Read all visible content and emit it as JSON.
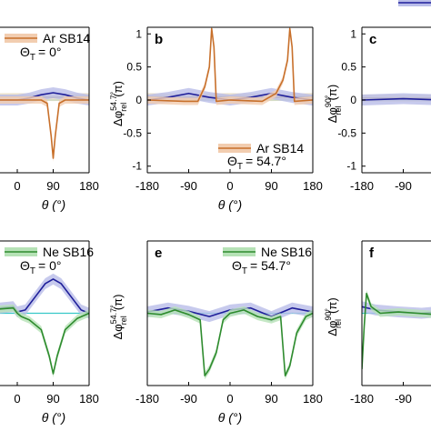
{
  "colors": {
    "ar": "#c8702b",
    "ar_band": "#f2cdb0",
    "ne": "#2e8b2e",
    "ne_band": "#b6e2b6",
    "model": "#1f1f9a",
    "model_band": "#b9bde9",
    "ref": "#36c8c8",
    "tan": "#b8a06a",
    "tan_band": "#e8dcc0",
    "axis": "#000000"
  },
  "chart_data": [
    {
      "id": "a-partial",
      "type": "line",
      "panel_label": "",
      "legend": {
        "label": "Ar SB14",
        "position": "top-right"
      },
      "annotation_sym": "Θ",
      "annotation_sub": "T",
      "annotation_val": "= 0°",
      "xlim": [
        -180,
        180
      ],
      "ylim": [
        -1.1,
        1.1
      ],
      "x_ticks": [
        "0",
        "90",
        "180"
      ],
      "y_ticks": [],
      "xlabel": "θ (°)",
      "ylabel": "",
      "series": [
        {
          "role": "data",
          "x": [
            -180,
            0,
            60,
            75,
            85,
            90,
            95,
            105,
            120,
            180
          ],
          "y": [
            0,
            0,
            0,
            -0.05,
            -0.55,
            -0.88,
            -0.55,
            -0.05,
            0,
            0
          ]
        },
        {
          "role": "model",
          "x": [
            -180,
            0,
            30,
            60,
            90,
            120,
            150,
            180
          ],
          "y": [
            0,
            0,
            0.03,
            0.08,
            0.11,
            0.08,
            0.03,
            0
          ]
        },
        {
          "role": "tan",
          "x": [
            -180,
            0,
            90,
            180
          ],
          "y": [
            0.04,
            0.05,
            0.04,
            0.05
          ]
        },
        {
          "role": "ref",
          "x": [
            -180,
            180
          ],
          "y": [
            0,
            0
          ]
        }
      ]
    },
    {
      "id": "b",
      "type": "line",
      "panel_label": "b",
      "legend": {
        "label": "Ar SB14",
        "position": "bottom-right"
      },
      "annotation_sym": "Θ",
      "annotation_sub": "T",
      "annotation_val": "= 54.7°",
      "xlim": [
        -180,
        180
      ],
      "ylim": [
        -1.1,
        1.1
      ],
      "x_ticks": [
        "-180",
        "-90",
        "0",
        "90",
        "180"
      ],
      "y_ticks": [
        "1",
        "0.5",
        "0",
        "-0.5",
        "-1"
      ],
      "xlabel": "θ (°)",
      "ylabel_main": "Δφ",
      "ylabel_sup": "54.7°",
      "ylabel_sub": "rel",
      "ylabel_unit": "(π)",
      "series": [
        {
          "role": "data",
          "x": [
            -180,
            -100,
            -70,
            -55,
            -45,
            -40,
            -35,
            -30,
            0,
            70,
            100,
            115,
            125,
            130,
            135,
            140,
            180
          ],
          "y": [
            0,
            -0.02,
            -0.02,
            0.2,
            0.5,
            1.08,
            0.8,
            -0.02,
            0,
            -0.02,
            0.1,
            0.3,
            0.6,
            1.08,
            0.8,
            -0.02,
            0
          ]
        },
        {
          "role": "model",
          "x": [
            -180,
            -135,
            -90,
            -45,
            0,
            45,
            90,
            135,
            180
          ],
          "y": [
            0,
            0.04,
            0.1,
            0.04,
            0,
            0.04,
            0.1,
            0.04,
            0
          ]
        },
        {
          "role": "tan",
          "x": [
            -180,
            -90,
            0,
            90,
            180
          ],
          "y": [
            0.05,
            0.04,
            0.05,
            0.04,
            0.05
          ]
        },
        {
          "role": "ref",
          "x": [
            -180,
            180
          ],
          "y": [
            0,
            0
          ]
        }
      ]
    },
    {
      "id": "c-partial",
      "type": "line",
      "panel_label": "c",
      "xlim": [
        -180,
        180
      ],
      "ylim": [
        -1.1,
        1.1
      ],
      "x_ticks": [
        "-180",
        "-90"
      ],
      "y_ticks": [
        "1",
        "0.5",
        "0",
        "-0.5",
        "-1"
      ],
      "xlabel": "",
      "ylabel_main": "Δφ",
      "ylabel_sup": "90°",
      "ylabel_sub": "rel",
      "ylabel_unit": "(π)",
      "series": [
        {
          "role": "model",
          "x": [
            -180,
            -90,
            0
          ],
          "y": [
            0,
            0.02,
            0
          ]
        },
        {
          "role": "tan",
          "x": [
            -180,
            -90,
            0
          ],
          "y": [
            0.03,
            0.03,
            0.03
          ]
        },
        {
          "role": "ref",
          "x": [
            -180,
            0
          ],
          "y": [
            0,
            0
          ]
        }
      ]
    },
    {
      "id": "d-partial",
      "type": "line",
      "panel_label": "",
      "legend": {
        "label": "Ne SB16",
        "position": "top-right"
      },
      "annotation_sym": "Θ",
      "annotation_sub": "T",
      "annotation_val": "= 0°",
      "xlim": [
        -180,
        180
      ],
      "ylim": [
        -1.1,
        1.1
      ],
      "x_ticks": [
        "0",
        "90",
        "180"
      ],
      "y_ticks": [],
      "xlabel": "θ (°)",
      "ylabel": "",
      "series": [
        {
          "role": "data",
          "x": [
            -180,
            -10,
            0,
            10,
            30,
            60,
            80,
            90,
            100,
            120,
            150,
            180
          ],
          "y": [
            0,
            0.08,
            0,
            -0.05,
            -0.1,
            -0.25,
            -0.65,
            -0.92,
            -0.65,
            -0.25,
            -0.08,
            0
          ]
        },
        {
          "role": "model",
          "x": [
            -180,
            -10,
            0,
            20,
            45,
            70,
            90,
            110,
            135,
            160,
            180
          ],
          "y": [
            0,
            0.1,
            0.02,
            0.05,
            0.25,
            0.45,
            0.52,
            0.45,
            0.25,
            0.05,
            0
          ]
        },
        {
          "role": "ref",
          "x": [
            -180,
            180
          ],
          "y": [
            0,
            0
          ]
        }
      ]
    },
    {
      "id": "e",
      "type": "line",
      "panel_label": "e",
      "legend": {
        "label": "Ne SB16",
        "position": "top-right"
      },
      "annotation_sym": "Θ",
      "annotation_sub": "T",
      "annotation_val": "= 54.7°",
      "xlim": [
        -180,
        180
      ],
      "ylim": [
        -1.1,
        1.1
      ],
      "x_ticks": [
        "-180",
        "-90",
        "0",
        "90",
        "180"
      ],
      "y_ticks": [],
      "xlabel": "θ (°)",
      "ylabel_main": "Δφ",
      "ylabel_sup": "54.7°",
      "ylabel_sub": "rel",
      "ylabel_unit": "(π)",
      "series": [
        {
          "role": "data",
          "x": [
            -180,
            -150,
            -120,
            -90,
            -65,
            -55,
            -45,
            -30,
            -15,
            0,
            30,
            60,
            90,
            110,
            120,
            130,
            145,
            165,
            180
          ],
          "y": [
            0,
            -0.02,
            0.05,
            -0.02,
            -0.1,
            -0.95,
            -0.85,
            -0.6,
            -0.1,
            0,
            0.05,
            -0.05,
            -0.1,
            -0.05,
            -0.95,
            -0.8,
            -0.3,
            -0.05,
            0
          ]
        },
        {
          "role": "model",
          "x": [
            -180,
            -135,
            -90,
            -45,
            0,
            45,
            90,
            135,
            180
          ],
          "y": [
            0.02,
            0.08,
            0.03,
            -0.05,
            0.05,
            0.08,
            -0.05,
            0.08,
            0.02
          ]
        },
        {
          "role": "ref",
          "x": [
            -180,
            180
          ],
          "y": [
            0,
            0
          ]
        }
      ]
    },
    {
      "id": "f-partial",
      "type": "line",
      "panel_label": "f",
      "xlim": [
        -180,
        180
      ],
      "ylim": [
        -1.1,
        1.1
      ],
      "x_ticks": [
        "-180",
        "-90"
      ],
      "y_ticks": [],
      "xlabel": "",
      "ylabel_main": "Δφ",
      "ylabel_sup": "90°",
      "ylabel_sub": "rel",
      "ylabel_unit": "(π)",
      "series": [
        {
          "role": "data",
          "x": [
            -180,
            -175,
            -170,
            -160,
            -140,
            -100,
            -60,
            -20,
            0
          ],
          "y": [
            -0.85,
            -0.2,
            0.3,
            0.1,
            0,
            0.02,
            0,
            -0.02,
            0
          ]
        },
        {
          "role": "model",
          "x": [
            -180,
            -150,
            -100,
            -50,
            0
          ],
          "y": [
            0.1,
            0.05,
            0.02,
            0,
            0.03
          ]
        },
        {
          "role": "ref",
          "x": [
            -180,
            0
          ],
          "y": [
            0,
            0
          ]
        }
      ]
    }
  ]
}
